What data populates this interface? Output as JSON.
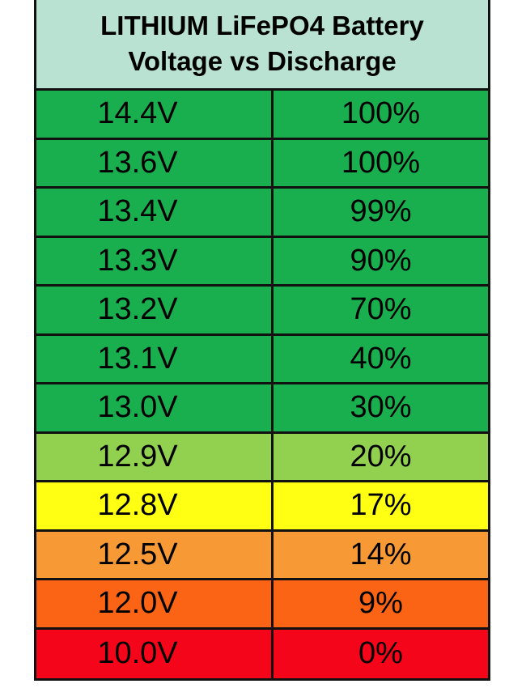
{
  "chart_data": {
    "type": "table",
    "title_lines": [
      "LITHIUM LiFePO4 Battery",
      "Voltage vs Discharge"
    ],
    "rows": [
      {
        "voltage": "14.4V",
        "charge": "100%",
        "color": "#19af4f"
      },
      {
        "voltage": "13.6V",
        "charge": "100%",
        "color": "#19af4f"
      },
      {
        "voltage": "13.4V",
        "charge": "99%",
        "color": "#19af4f"
      },
      {
        "voltage": "13.3V",
        "charge": "90%",
        "color": "#19af4f"
      },
      {
        "voltage": "13.2V",
        "charge": "70%",
        "color": "#19af4f"
      },
      {
        "voltage": "13.1V",
        "charge": "40%",
        "color": "#19af4f"
      },
      {
        "voltage": "13.0V",
        "charge": "30%",
        "color": "#19af4f"
      },
      {
        "voltage": "12.9V",
        "charge": "20%",
        "color": "#92d050"
      },
      {
        "voltage": "12.8V",
        "charge": "17%",
        "color": "#ffff14"
      },
      {
        "voltage": "12.5V",
        "charge": "14%",
        "color": "#f79a36"
      },
      {
        "voltage": "12.0V",
        "charge": "9%",
        "color": "#fa6414"
      },
      {
        "voltage": "10.0V",
        "charge": "0%",
        "color": "#f5051a"
      }
    ],
    "header_color": "#b9e2d2"
  }
}
